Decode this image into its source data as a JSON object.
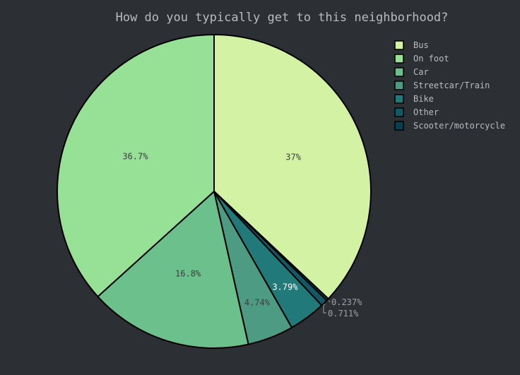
{
  "chart_data": {
    "type": "pie",
    "title": "How do you typically get to this neighborhood?",
    "categories": [
      "Bus",
      "On foot",
      "Car",
      "Streetcar/Train",
      "Bike",
      "Other",
      "Scooter/motorcycle"
    ],
    "values": [
      37.0,
      36.7,
      16.8,
      4.74,
      3.79,
      0.711,
      0.237
    ],
    "labels": [
      "37%",
      "36.7%",
      "16.8%",
      "4.74%",
      "3.79%",
      "0.711%",
      "0.237%"
    ],
    "colors": [
      "#d3f2a3",
      "#97e196",
      "#6cc08b",
      "#4c9b82",
      "#217a79",
      "#105965",
      "#074050"
    ],
    "legend_position": "top-right",
    "background": "#2c2f33"
  }
}
